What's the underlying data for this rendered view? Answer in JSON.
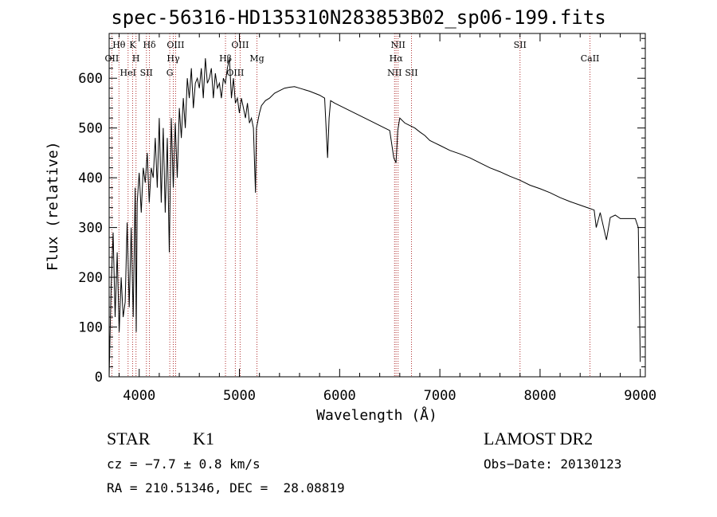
{
  "chart_data": {
    "type": "line",
    "title": "spec-56316-HD135310N283853B02_sp06-199.fits",
    "xlabel": "Wavelength (Å)",
    "ylabel": "Flux (relative)",
    "xlim": [
      3700,
      9050
    ],
    "ylim": [
      0,
      690
    ],
    "xticks": [
      4000,
      5000,
      6000,
      7000,
      8000,
      9000
    ],
    "yticks": [
      0,
      100,
      200,
      300,
      400,
      500,
      600
    ],
    "grid": false,
    "series": [
      {
        "x": [
          3700,
          3720,
          3740,
          3760,
          3780,
          3800,
          3820,
          3840,
          3860,
          3880,
          3900,
          3920,
          3940,
          3960,
          3970,
          3980,
          4000,
          4020,
          4040,
          4060,
          4080,
          4100,
          4120,
          4140,
          4160,
          4180,
          4200,
          4220,
          4240,
          4260,
          4280,
          4300,
          4320,
          4340,
          4360,
          4380,
          4400,
          4420,
          4440,
          4460,
          4480,
          4500,
          4520,
          4540,
          4560,
          4580,
          4600,
          4620,
          4640,
          4660,
          4680,
          4700,
          4720,
          4740,
          4760,
          4780,
          4800,
          4820,
          4840,
          4860,
          4880,
          4900,
          4920,
          4940,
          4960,
          4980,
          5000,
          5020,
          5040,
          5060,
          5080,
          5100,
          5120,
          5140,
          5160,
          5170,
          5180,
          5200,
          5220,
          5260,
          5300,
          5350,
          5400,
          5450,
          5500,
          5550,
          5600,
          5650,
          5700,
          5750,
          5800,
          5850,
          5880,
          5895,
          5910,
          5950,
          6000,
          6050,
          6100,
          6150,
          6200,
          6250,
          6300,
          6350,
          6400,
          6450,
          6500,
          6540,
          6563,
          6580,
          6600,
          6650,
          6700,
          6750,
          6800,
          6850,
          6900,
          6950,
          7000,
          7100,
          7200,
          7300,
          7400,
          7500,
          7600,
          7700,
          7800,
          7900,
          8000,
          8100,
          8200,
          8300,
          8400,
          8500,
          8540,
          8560,
          8600,
          8662,
          8700,
          8750,
          8800,
          8850,
          8900,
          8950,
          8980,
          9000
        ],
        "values": [
          0,
          180,
          290,
          120,
          250,
          90,
          200,
          120,
          150,
          310,
          140,
          300,
          120,
          380,
          90,
          350,
          410,
          330,
          420,
          390,
          450,
          350,
          420,
          400,
          480,
          380,
          520,
          350,
          500,
          330,
          480,
          250,
          520,
          380,
          510,
          400,
          540,
          480,
          560,
          500,
          600,
          560,
          620,
          540,
          590,
          600,
          580,
          620,
          560,
          640,
          590,
          600,
          620,
          560,
          610,
          580,
          590,
          560,
          600,
          590,
          620,
          640,
          560,
          600,
          550,
          560,
          530,
          560,
          540,
          520,
          550,
          510,
          520,
          500,
          370,
          500,
          510,
          530,
          545,
          555,
          560,
          570,
          575,
          580,
          582,
          583,
          580,
          577,
          574,
          570,
          566,
          560,
          440,
          520,
          555,
          550,
          545,
          540,
          535,
          530,
          525,
          520,
          515,
          510,
          505,
          500,
          495,
          440,
          430,
          495,
          520,
          510,
          505,
          500,
          492,
          485,
          475,
          470,
          465,
          455,
          448,
          440,
          430,
          420,
          412,
          403,
          395,
          385,
          378,
          370,
          360,
          352,
          345,
          338,
          335,
          300,
          330,
          275,
          320,
          325,
          318,
          318,
          318,
          318,
          300,
          30
        ]
      }
    ],
    "lines": [
      {
        "label": "Hθ",
        "x": 3798
      },
      {
        "label": "OII",
        "x": 3727
      },
      {
        "label": "HeI",
        "x": 3889
      },
      {
        "label": "K",
        "x": 3934
      },
      {
        "label": "H",
        "x": 3968
      },
      {
        "label": "SII",
        "x": 4072
      },
      {
        "label": "Hδ",
        "x": 4102
      },
      {
        "label": "Hγ",
        "x": 4340
      },
      {
        "label": "G",
        "x": 4305
      },
      {
        "label": "OIII",
        "x": 4363
      },
      {
        "label": "Hβ",
        "x": 4861
      },
      {
        "label": "OIII",
        "x": 4959
      },
      {
        "label": "OIII",
        "x": 5007
      },
      {
        "label": "Mg",
        "x": 5175
      },
      {
        "label": "NII",
        "x": 6548
      },
      {
        "label": "NII",
        "x": 6583
      },
      {
        "label": "Hα",
        "x": 6563
      },
      {
        "label": "SII",
        "x": 6717
      },
      {
        "label": "SII",
        "x": 7800
      },
      {
        "label": "CaII",
        "x": 8498
      }
    ]
  },
  "footer": {
    "star_class": "STAR",
    "subclass": "K1",
    "survey": "LAMOST DR2",
    "cz": "cz = −7.7 ± 0.8 km/s",
    "obs_date": "Obs−Date: 20130123",
    "radec": "RA = 210.51346, DEC =  28.08819"
  },
  "colors": {
    "lines": "#b03030",
    "spectrum": "#000000"
  }
}
